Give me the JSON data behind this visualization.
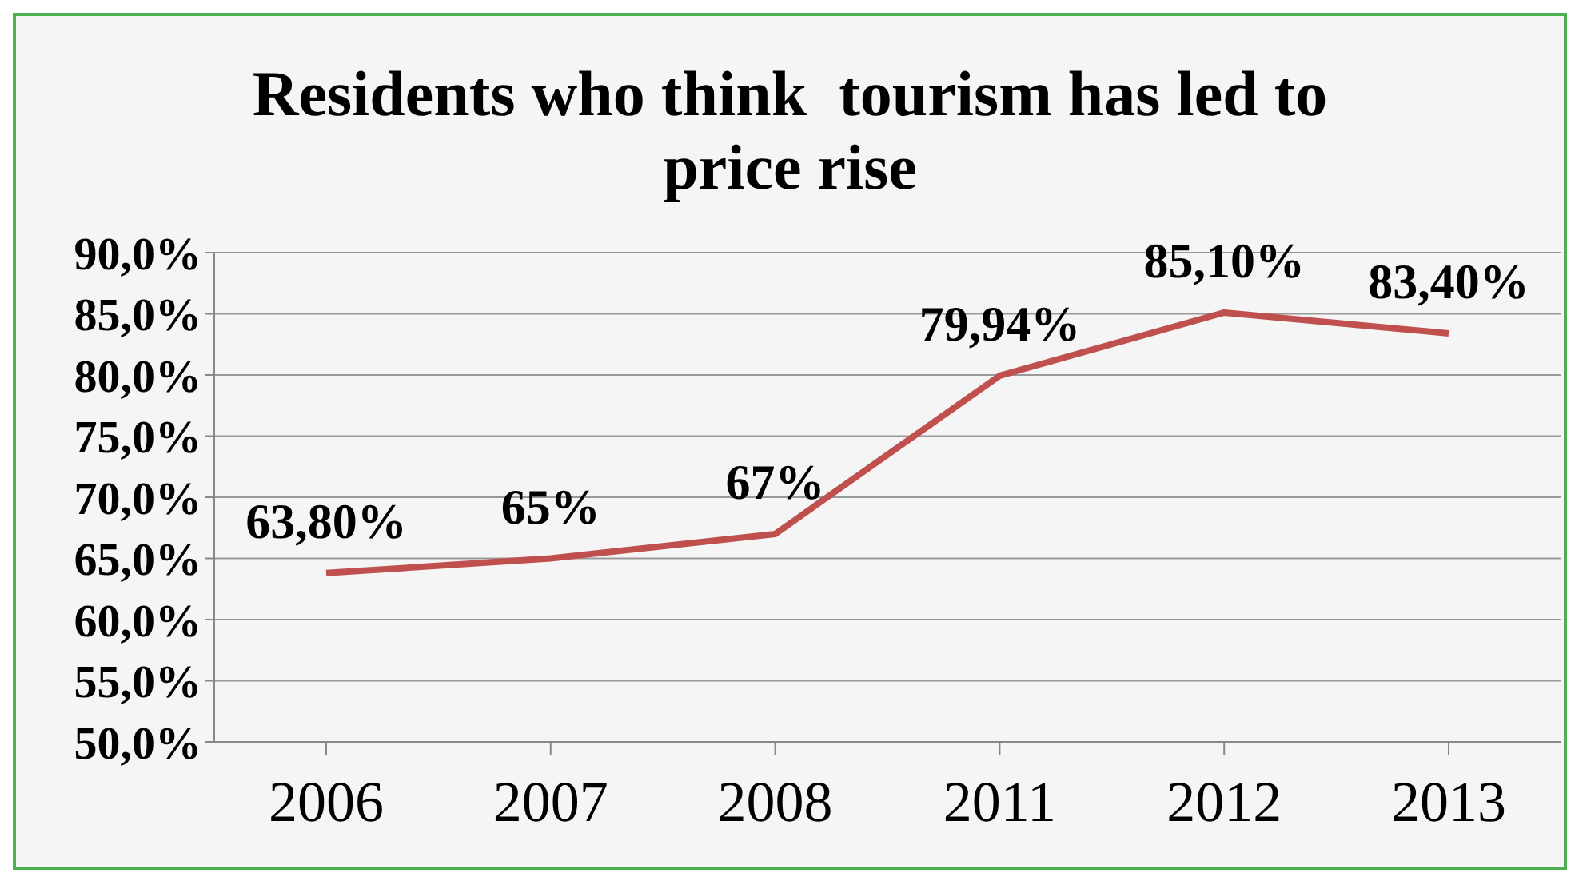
{
  "chart_data": {
    "type": "line",
    "title": "Residents who think  tourism has led to price rise",
    "categories": [
      "2006",
      "2007",
      "2008",
      "2011",
      "2012",
      "2013"
    ],
    "series": [
      {
        "color": "#c0504d",
        "values": [
          63.8,
          65,
          67,
          79.94,
          85.1,
          83.4
        ],
        "value_labels": [
          "63,80%",
          "65%",
          "67%",
          "79,94%",
          "85,10%",
          "83,40%"
        ]
      }
    ],
    "ylim": [
      50,
      90
    ],
    "yticks": [
      {
        "value": 50,
        "label": "50,0%"
      },
      {
        "value": 55,
        "label": "55,0%"
      },
      {
        "value": 60,
        "label": "60,0%"
      },
      {
        "value": 65,
        "label": "65,0%"
      },
      {
        "value": 70,
        "label": "70,0%"
      },
      {
        "value": 75,
        "label": "75,0%"
      },
      {
        "value": 80,
        "label": "80,0%"
      },
      {
        "value": 85,
        "label": "85,0%"
      },
      {
        "value": 90,
        "label": "90,0%"
      }
    ],
    "grid": "y",
    "legend": false,
    "marker": "none",
    "line_style": "solid"
  }
}
